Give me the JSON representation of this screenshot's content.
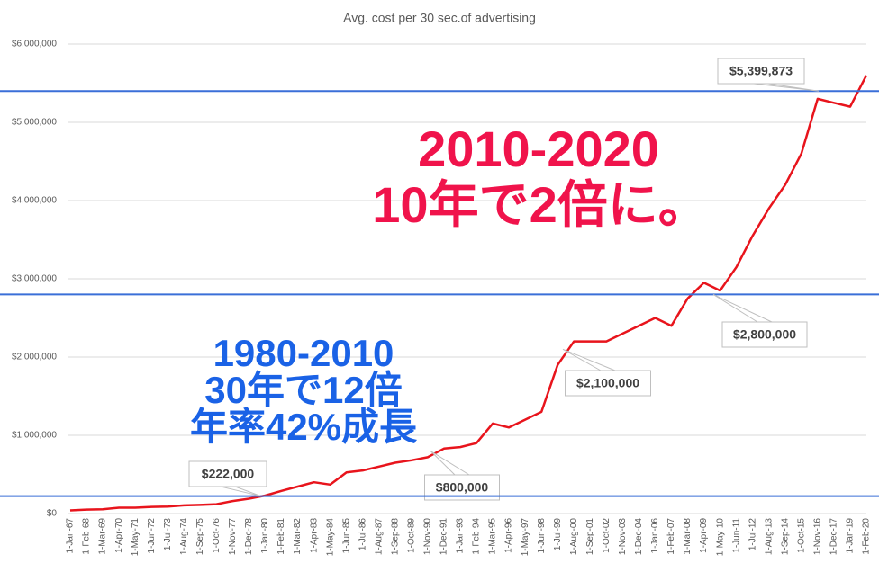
{
  "chart_data": {
    "type": "line",
    "title": "Avg. cost per 30 sec.of advertising",
    "categories": [
      "1-Jan-67",
      "1-Feb-68",
      "1-Mar-69",
      "1-Apr-70",
      "1-May-71",
      "1-Jun-72",
      "1-Jul-73",
      "1-Aug-74",
      "1-Sep-75",
      "1-Oct-76",
      "1-Nov-77",
      "1-Dec-78",
      "1-Jan-80",
      "1-Feb-81",
      "1-Mar-82",
      "1-Apr-83",
      "1-May-84",
      "1-Jun-85",
      "1-Jul-86",
      "1-Aug-87",
      "1-Sep-88",
      "1-Oct-89",
      "1-Nov-90",
      "1-Dec-91",
      "1-Jan-93",
      "1-Feb-94",
      "1-Mar-95",
      "1-Apr-96",
      "1-May-97",
      "1-Jun-98",
      "1-Jul-99",
      "1-Aug-00",
      "1-Sep-01",
      "1-Oct-02",
      "1-Nov-03",
      "1-Dec-04",
      "1-Jan-06",
      "1-Feb-07",
      "1-Mar-08",
      "1-Apr-09",
      "1-May-10",
      "1-Jun-11",
      "1-Jul-12",
      "1-Aug-13",
      "1-Sep-14",
      "1-Oct-15",
      "1-Nov-16",
      "1-Dec-17",
      "1-Jan-19",
      "1-Feb-20"
    ],
    "values": [
      40000,
      50000,
      55000,
      75000,
      75000,
      85000,
      90000,
      105000,
      110000,
      120000,
      160000,
      190000,
      230000,
      290000,
      345000,
      400000,
      370000,
      525000,
      550000,
      600000,
      650000,
      680000,
      720000,
      830000,
      850000,
      900000,
      1150000,
      1100000,
      1200000,
      1300000,
      1900000,
      2200000,
      2200000,
      2200000,
      2300000,
      2400000,
      2500000,
      2400000,
      2750000,
      2950000,
      2850000,
      3150000,
      3550000,
      3900000,
      4200000,
      4600000,
      5300000,
      5250000,
      5200000,
      5600000
    ],
    "color": "#e8141c",
    "ylim": [
      0,
      6000000
    ],
    "yticks": [
      {
        "value": 0,
        "label": "$0"
      },
      {
        "value": 1000000,
        "label": "$1,000,000"
      },
      {
        "value": 2000000,
        "label": "$2,000,000"
      },
      {
        "value": 3000000,
        "label": "$3,000,000"
      },
      {
        "value": 4000000,
        "label": "$4,000,000"
      },
      {
        "value": 5000000,
        "label": "$5,000,000"
      },
      {
        "value": 6000000,
        "label": "$6,000,000"
      }
    ],
    "grid": true,
    "reference_line_color": "#3a6fd8",
    "annotations": [
      {
        "label": "$5,399,873",
        "value": 5399873,
        "reference_line": true
      },
      {
        "label": "$2,800,000",
        "value": 2800000,
        "reference_line": true
      },
      {
        "label": "$2,100,000",
        "value": 2100000,
        "reference_line": false
      },
      {
        "label": "$800,000",
        "value": 800000,
        "reference_line": false
      },
      {
        "label": "$222,000",
        "value": 222000,
        "reference_line": true
      }
    ],
    "text_annotations": [
      {
        "text": "2010-2020",
        "color": "#f0134b"
      },
      {
        "text": "10年で2倍に。",
        "color": "#f0134b"
      },
      {
        "text": "1980-2010",
        "color": "#1a62e6"
      },
      {
        "text": "30年で12倍",
        "color": "#1a62e6"
      },
      {
        "text": "年率42%成長",
        "color": "#1a62e6"
      }
    ]
  }
}
